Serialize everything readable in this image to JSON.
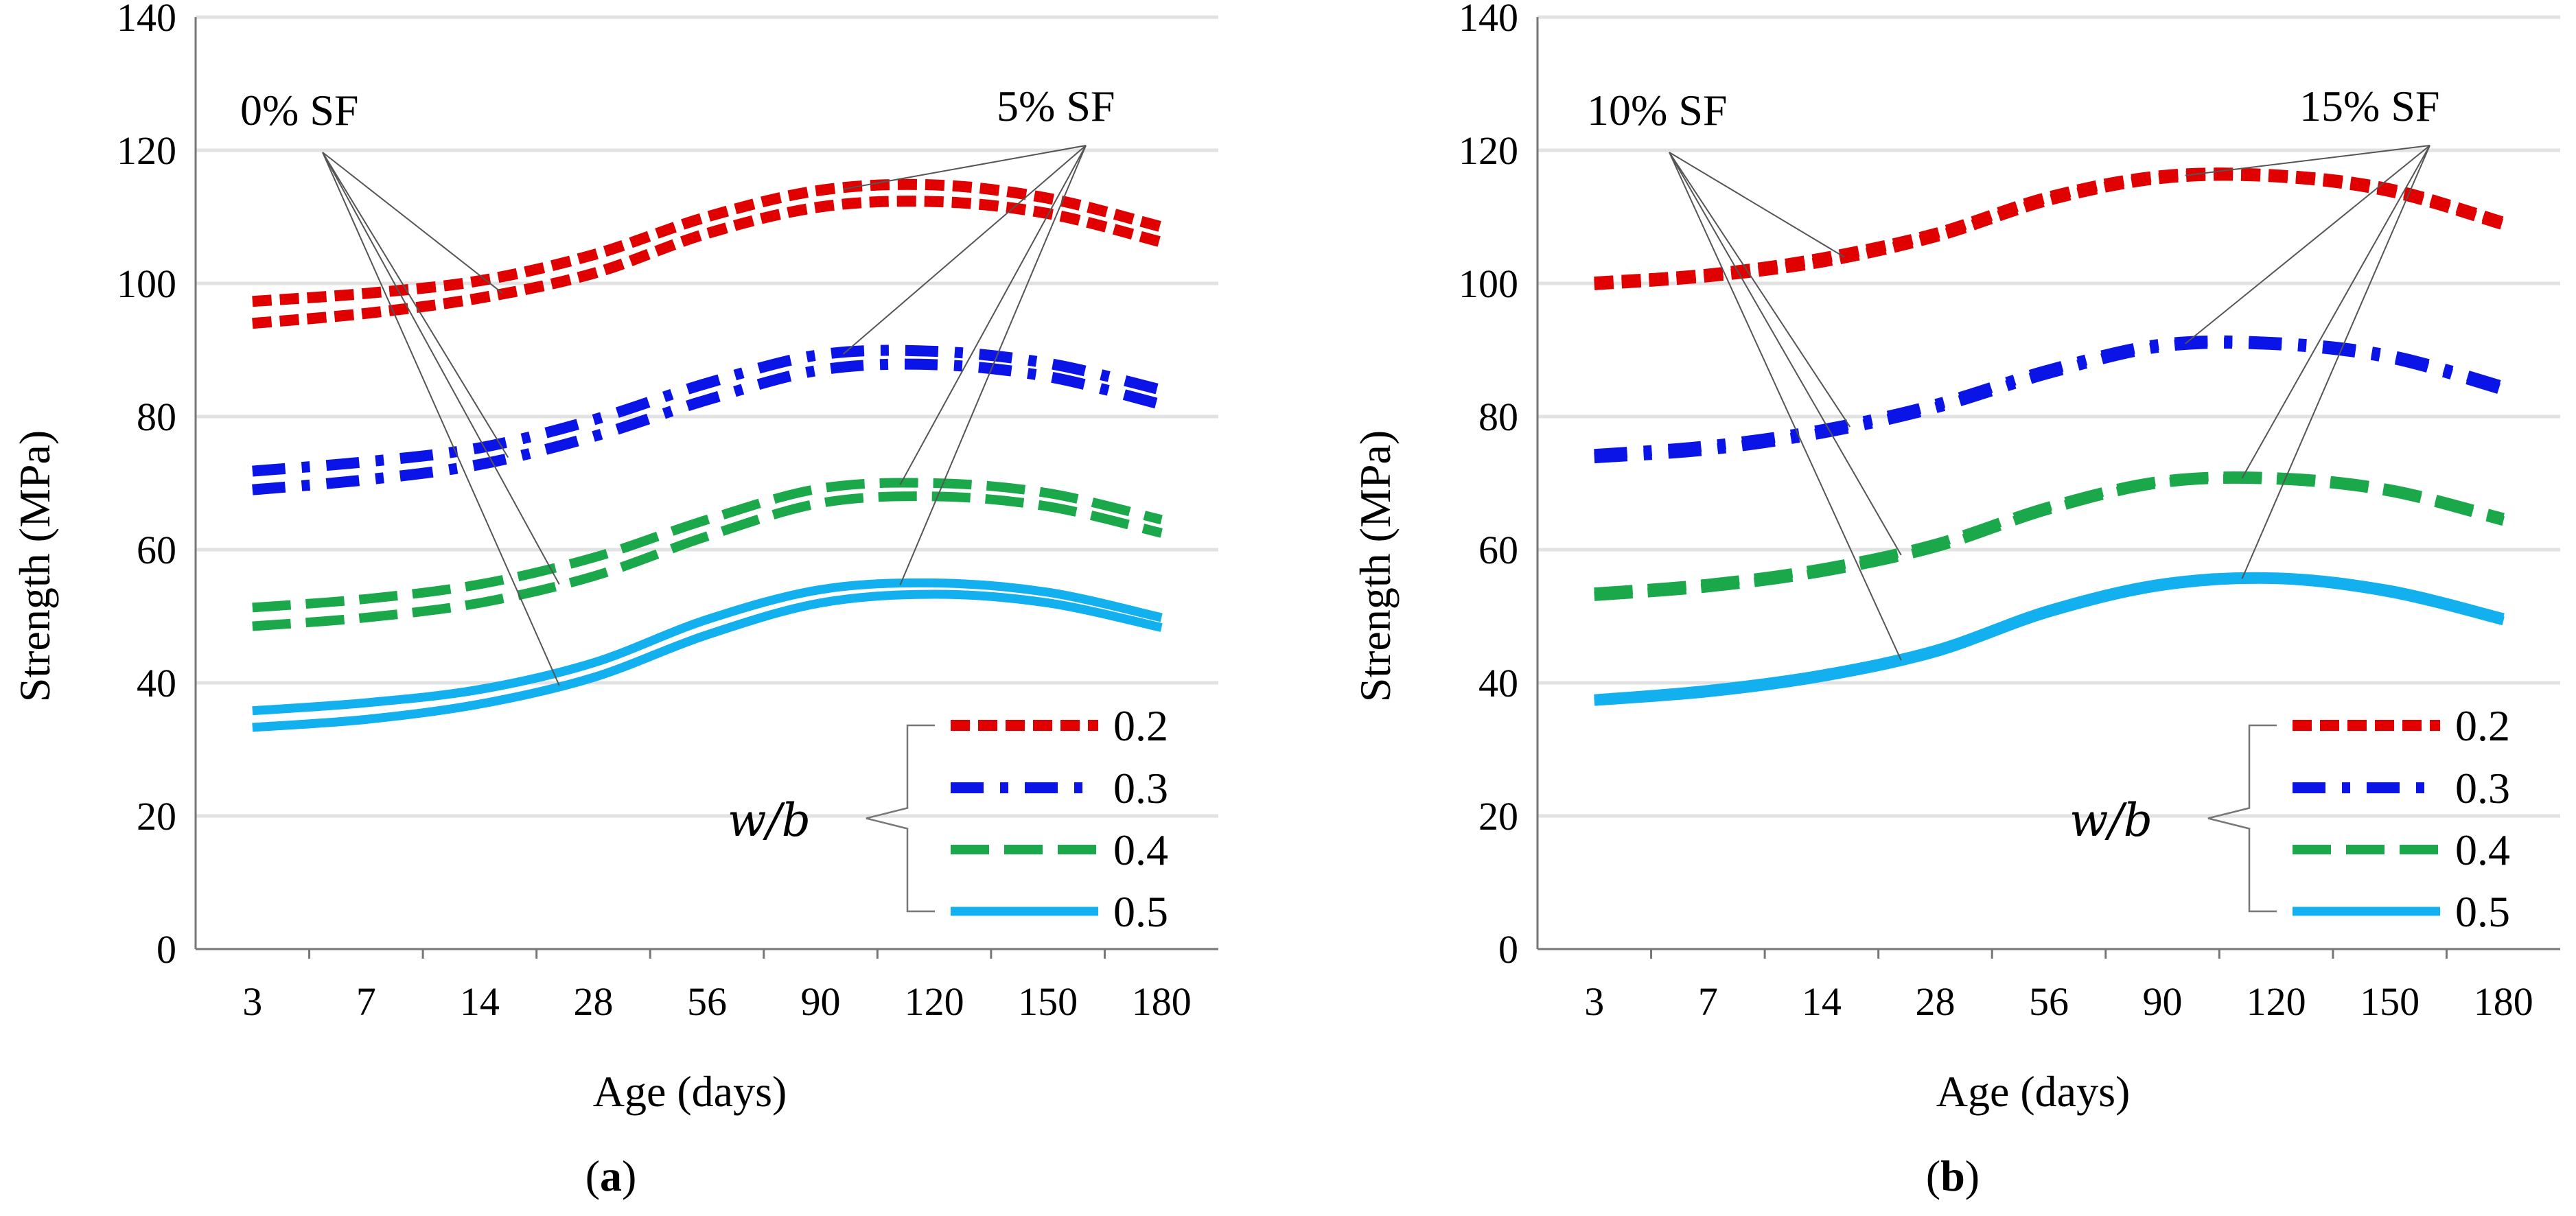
{
  "figure": {
    "captions": [
      {
        "paren_open": "(",
        "letter": "a",
        "paren_close": ")"
      },
      {
        "paren_open": "(",
        "letter": "b",
        "paren_close": ")"
      }
    ]
  },
  "chart_data": [
    {
      "type": "line",
      "panel": "a",
      "xlabel": "Age (days)",
      "ylabel": "Strength (MPa)",
      "categories": [
        "3",
        "7",
        "14",
        "28",
        "56",
        "90",
        "120",
        "150",
        "180"
      ],
      "ylim": [
        0,
        140
      ],
      "yticks": [
        0,
        20,
        40,
        60,
        80,
        100,
        120,
        140
      ],
      "grid": "horizontal",
      "annotations": [
        {
          "text": "0% SF",
          "position": "top-left"
        },
        {
          "text": "5% SF",
          "position": "top-right"
        }
      ],
      "legend": {
        "title": "w/b",
        "entries": [
          "0.2",
          "0.3",
          "0.4",
          "0.5"
        ],
        "placement": "bottom-right"
      },
      "series": [
        {
          "name": "0.2 (0% SF)",
          "wb": "0.2",
          "sf": "0%",
          "color": "#e00000",
          "values": [
            94.0,
            95.5,
            97.8,
            101.5,
            107.5,
            111.5,
            112.3,
            110.5,
            106.2
          ]
        },
        {
          "name": "0.2 (5% SF)",
          "wb": "0.2",
          "sf": "5%",
          "color": "#e00000",
          "values": [
            97.3,
            98.5,
            100.4,
            104.3,
            110.0,
            114.0,
            114.8,
            112.8,
            108.5
          ]
        },
        {
          "name": "0.3 (0% SF)",
          "wb": "0.3",
          "sf": "0%",
          "color": "#0a14e6",
          "values": [
            69.0,
            70.5,
            72.8,
            77.0,
            82.5,
            87.0,
            87.8,
            86.0,
            81.8
          ]
        },
        {
          "name": "0.3 (5% SF)",
          "wb": "0.3",
          "sf": "5%",
          "color": "#0a14e6",
          "values": [
            71.8,
            73.2,
            75.3,
            79.5,
            85.0,
            89.3,
            89.8,
            88.0,
            84.0
          ]
        },
        {
          "name": "0.4 (0% SF)",
          "wb": "0.4",
          "sf": "0%",
          "color": "#1aa84a",
          "values": [
            48.5,
            49.8,
            52.0,
            56.0,
            62.0,
            67.0,
            68.0,
            66.5,
            62.5
          ]
        },
        {
          "name": "0.4 (5% SF)",
          "wb": "0.4",
          "sf": "5%",
          "color": "#1aa84a",
          "values": [
            51.3,
            52.6,
            54.8,
            58.8,
            64.5,
            69.2,
            70.0,
            68.5,
            64.5
          ]
        },
        {
          "name": "0.5 (0% SF)",
          "wb": "0.5",
          "sf": "0%",
          "color": "#12b0ef",
          "values": [
            33.3,
            34.5,
            36.8,
            40.8,
            47.2,
            52.0,
            53.3,
            52.0,
            48.3
          ]
        },
        {
          "name": "0.5 (5% SF)",
          "wb": "0.5",
          "sf": "5%",
          "color": "#12b0ef",
          "values": [
            35.8,
            37.0,
            39.0,
            43.0,
            49.5,
            54.0,
            55.0,
            53.6,
            49.8
          ]
        }
      ]
    },
    {
      "type": "line",
      "panel": "b",
      "xlabel": "Age (days)",
      "ylabel": "Strength (MPa)",
      "categories": [
        "3",
        "7",
        "14",
        "28",
        "56",
        "90",
        "120",
        "150",
        "180"
      ],
      "ylim": [
        0,
        140
      ],
      "yticks": [
        0,
        20,
        40,
        60,
        80,
        100,
        120,
        140
      ],
      "grid": "horizontal",
      "annotations": [
        {
          "text": "10% SF",
          "position": "top-left"
        },
        {
          "text": "15% SF",
          "position": "top-right"
        }
      ],
      "legend": {
        "title": "w/b",
        "entries": [
          "0.2",
          "0.3",
          "0.4",
          "0.5"
        ],
        "placement": "bottom-right"
      },
      "series": [
        {
          "name": "0.2 (10% SF)",
          "wb": "0.2",
          "sf": "10%",
          "color": "#e00000",
          "values": [
            99.8,
            101.0,
            103.2,
            107.0,
            112.5,
            115.8,
            116.0,
            113.8,
            108.8
          ]
        },
        {
          "name": "0.2 (15% SF)",
          "wb": "0.2",
          "sf": "15%",
          "color": "#e00000",
          "values": [
            100.2,
            101.4,
            103.8,
            107.5,
            113.0,
            116.2,
            116.3,
            114.2,
            109.2
          ]
        },
        {
          "name": "0.3 (10% SF)",
          "wb": "0.3",
          "sf": "10%",
          "color": "#0a14e6",
          "values": [
            73.8,
            75.0,
            77.5,
            81.3,
            86.5,
            90.5,
            90.8,
            88.8,
            84.0
          ]
        },
        {
          "name": "0.3 (15% SF)",
          "wb": "0.3",
          "sf": "15%",
          "color": "#0a14e6",
          "values": [
            74.3,
            75.6,
            78.0,
            81.8,
            87.0,
            90.9,
            91.1,
            89.2,
            84.5
          ]
        },
        {
          "name": "0.4 (10% SF)",
          "wb": "0.4",
          "sf": "10%",
          "color": "#1aa84a",
          "values": [
            53.0,
            54.3,
            56.6,
            60.3,
            66.0,
            70.0,
            70.5,
            68.7,
            64.3
          ]
        },
        {
          "name": "0.4 (15% SF)",
          "wb": "0.4",
          "sf": "15%",
          "color": "#1aa84a",
          "values": [
            53.6,
            54.9,
            57.2,
            60.9,
            66.5,
            70.4,
            70.9,
            69.1,
            64.8
          ]
        },
        {
          "name": "0.5 (10% SF)",
          "wb": "0.5",
          "sf": "10%",
          "color": "#12b0ef",
          "values": [
            37.2,
            38.5,
            40.8,
            44.5,
            50.5,
            54.5,
            55.5,
            53.5,
            49.3
          ]
        },
        {
          "name": "0.5 (15% SF)",
          "wb": "0.5",
          "sf": "15%",
          "color": "#12b0ef",
          "values": [
            37.6,
            39.0,
            41.3,
            45.0,
            51.0,
            55.0,
            55.9,
            54.0,
            49.8
          ]
        }
      ]
    }
  ]
}
